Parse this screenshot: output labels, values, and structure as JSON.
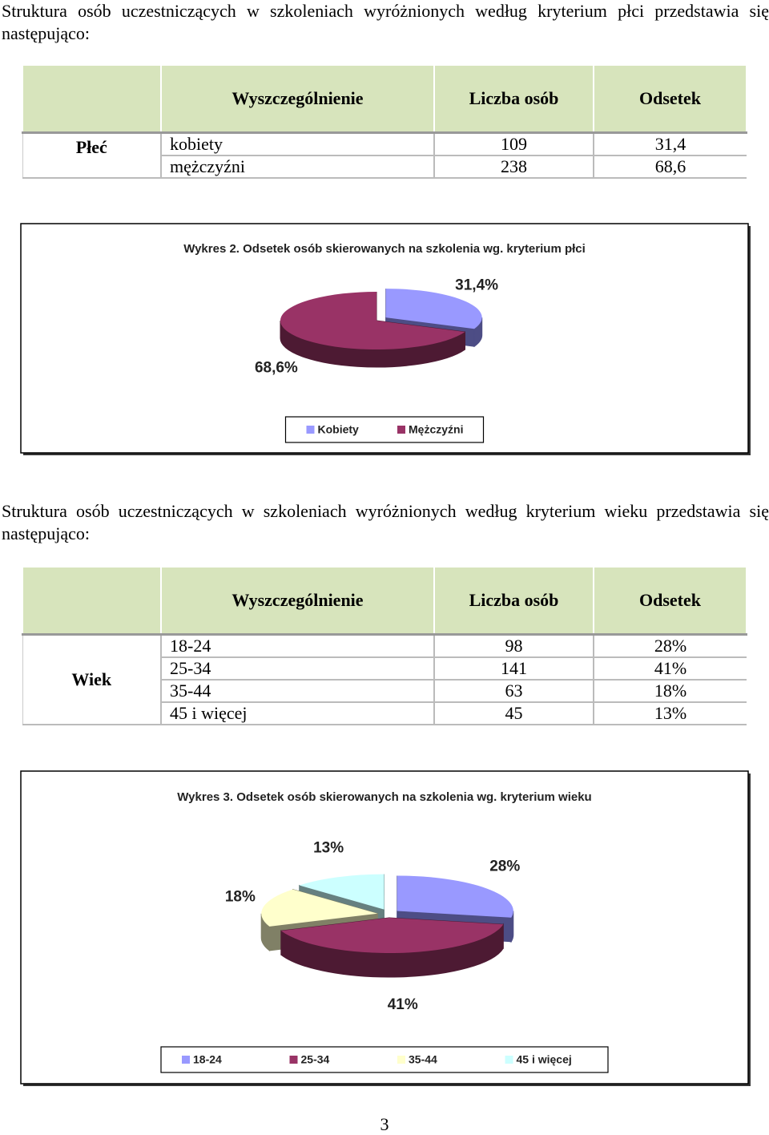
{
  "paragraphs": [
    "Struktura osób uczestniczących w szkoleniach wyróżnionych według kryterium płci przedstawia się następująco:",
    "Struktura osób uczestniczących w szkoleniach wyróżnionych według kryterium wieku przedstawia się następująco:"
  ],
  "tables": [
    {
      "header": [
        "Wyszczególnienie",
        "Liczba osób",
        "Odsetek"
      ],
      "group": "Płeć",
      "rows": [
        [
          "kobiety",
          "109",
          "31,4"
        ],
        [
          "mężczyźni",
          "238",
          "68,6"
        ]
      ]
    },
    {
      "header": [
        "Wyszczególnienie",
        "Liczba osób",
        "Odsetek"
      ],
      "group": "Wiek",
      "rows": [
        [
          "18-24",
          "98",
          "28%"
        ],
        [
          "25-34",
          "141",
          "41%"
        ],
        [
          "35-44",
          "63",
          "18%"
        ],
        [
          "45 i więcej",
          "45",
          "13%"
        ]
      ]
    }
  ],
  "chart_data": [
    {
      "type": "pie",
      "title": "Wykres 2. Odsetek osób skierowanych na szkolenia wg. kryterium płci",
      "categories": [
        "Kobiety",
        "Mężczyźni"
      ],
      "values": [
        31.4,
        68.6
      ],
      "value_labels": [
        "31,4%",
        "68,6%"
      ],
      "colors": [
        "#9999ff",
        "#993366"
      ],
      "side_colors": [
        "#4d4d85",
        "#4d1a33"
      ],
      "legend": "bottom"
    },
    {
      "type": "pie",
      "title": "Wykres 3. Odsetek osób skierowanych na szkolenia wg. kryterium wieku",
      "categories": [
        "18-24",
        "25-34",
        "35-44",
        "45 i więcej"
      ],
      "values": [
        28,
        41,
        18,
        13
      ],
      "value_labels": [
        "28%",
        "41%",
        "18%",
        "13%"
      ],
      "colors": [
        "#9999ff",
        "#993366",
        "#ffffcc",
        "#ccffff"
      ],
      "side_colors": [
        "#4d4d85",
        "#4d1a33",
        "#808066",
        "#668080"
      ],
      "legend": "bottom"
    }
  ],
  "page_number": "3"
}
